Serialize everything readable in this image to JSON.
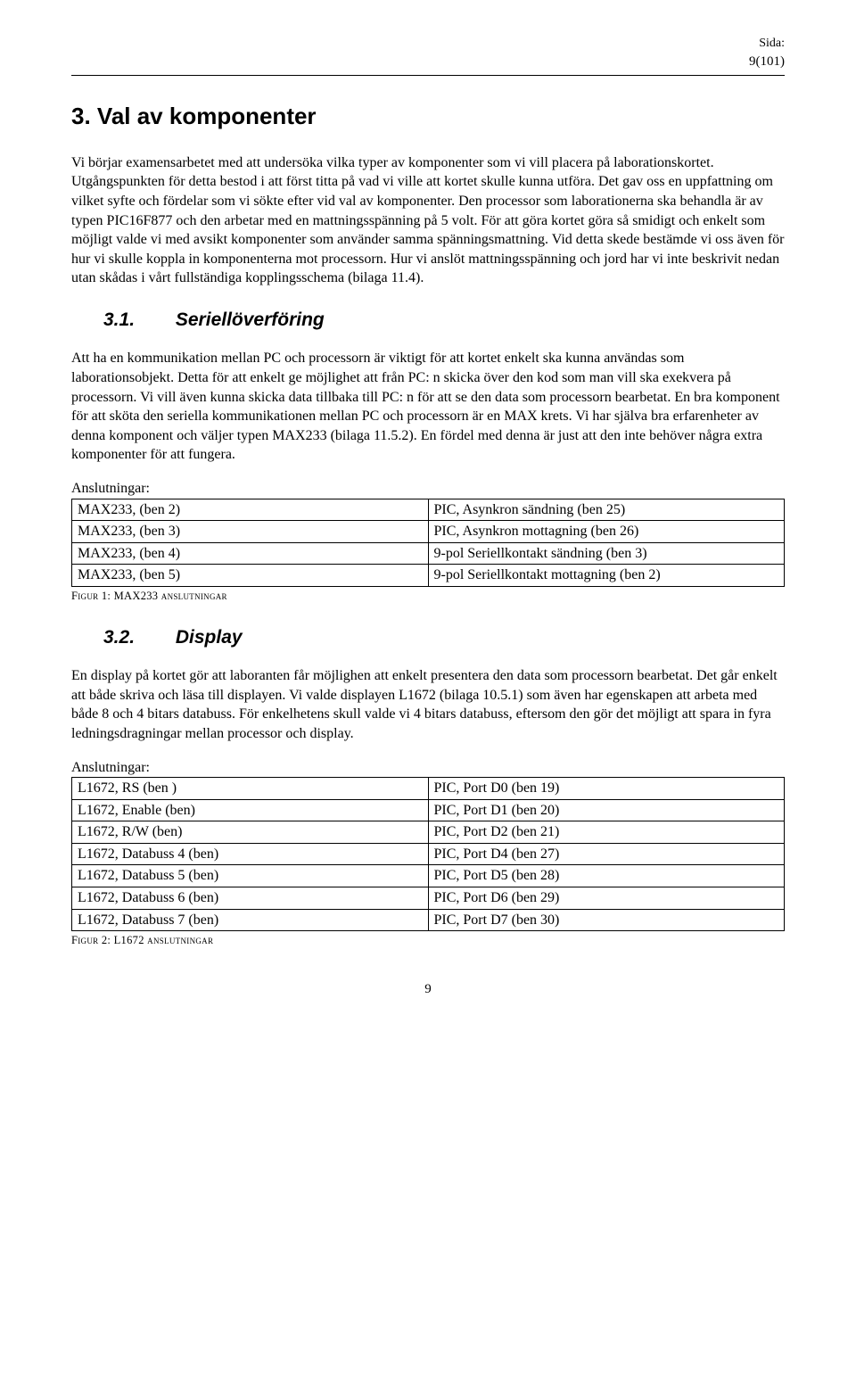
{
  "header": {
    "sida_label": "Sida:",
    "pagenum": "9(101)"
  },
  "h1": "3. Val av komponenter",
  "intro_para": "Vi börjar examensarbetet med att undersöka vilka typer av komponenter som vi vill placera på laborationskortet. Utgångspunkten för detta bestod i att först titta på vad vi ville att kortet skulle kunna utföra. Det gav oss en uppfattning om vilket syfte och fördelar som vi sökte efter vid val av komponenter. Den processor som laborationerna ska behandla är av typen PIC16F877 och den arbetar med en mattningsspänning på 5 volt. För att göra kortet göra så smidigt och enkelt som möjligt valde vi med avsikt komponenter som använder samma spänningsmattning. Vid detta skede bestämde vi oss även för hur vi skulle koppla in komponenterna mot processorn. Hur vi anslöt mattningsspänning och jord har vi inte beskrivit nedan utan skådas i vårt fullständiga kopplingsschema (bilaga 11.4).",
  "sec31": {
    "num": "3.1.",
    "title": "Seriellöverföring",
    "para": "Att ha en kommunikation mellan PC och processorn är viktigt för att kortet enkelt ska kunna användas som laborationsobjekt. Detta för att enkelt ge möjlighet att från PC: n skicka över den kod som man vill ska exekvera på processorn. Vi vill även kunna skicka data tillbaka till PC: n för att se den data som processorn bearbetat. En bra komponent för att sköta den seriella kommunikationen mellan PC och processorn är en MAX krets. Vi har själva bra erfarenheter av denna komponent och väljer typen MAX233 (bilaga 11.5.2). En fördel med denna är just att den inte behöver några extra komponenter för att fungera.",
    "conn_label": "Anslutningar:",
    "rows": [
      [
        "MAX233, (ben 2)",
        "PIC, Asynkron sändning (ben 25)"
      ],
      [
        "MAX233, (ben 3)",
        "PIC, Asynkron mottagning (ben 26)"
      ],
      [
        "MAX233, (ben 4)",
        "9-pol Seriellkontakt sändning (ben 3)"
      ],
      [
        "MAX233, (ben 5)",
        "9-pol Seriellkontakt mottagning (ben 2)"
      ]
    ],
    "figcap": "Figur 1: MAX233 anslutningar"
  },
  "sec32": {
    "num": "3.2.",
    "title": "Display",
    "para": "En display på kortet gör att laboranten får möjlighen att enkelt presentera den data som processorn bearbetat. Det går enkelt att både skriva och läsa till displayen. Vi valde displayen L1672 (bilaga 10.5.1) som även har egenskapen att arbeta med både 8 och 4 bitars databuss. För enkelhetens skull valde vi 4 bitars databuss, eftersom den gör det möjligt att spara in fyra ledningsdragningar mellan processor och display.",
    "conn_label": "Anslutningar:",
    "rows": [
      [
        "L1672, RS (ben )",
        "PIC, Port D0 (ben 19)"
      ],
      [
        "L1672, Enable (ben)",
        "PIC, Port D1 (ben 20)"
      ],
      [
        "L1672, R/W (ben)",
        "PIC, Port D2 (ben 21)"
      ],
      [
        "L1672, Databuss 4 (ben)",
        "PIC, Port D4 (ben 27)"
      ],
      [
        "L1672, Databuss 5 (ben)",
        "PIC, Port D5 (ben 28)"
      ],
      [
        "L1672, Databuss 6 (ben)",
        "PIC, Port D6 (ben 29)"
      ],
      [
        "L1672, Databuss 7 (ben)",
        "PIC, Port D7 (ben 30)"
      ]
    ],
    "figcap": "Figur 2: L1672 anslutningar"
  },
  "footer_page": "9"
}
